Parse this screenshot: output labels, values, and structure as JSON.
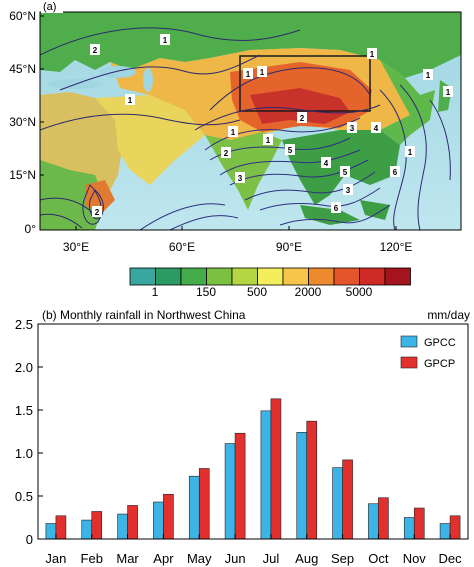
{
  "map_panel": {
    "label": "(a)",
    "lat_ticks": [
      "60°N",
      "45°N",
      "30°N",
      "15°N",
      "0°"
    ],
    "lon_ticks": [
      "30°E",
      "60°E",
      "90°E",
      "120°E"
    ],
    "contour_labels": [
      "2",
      "1",
      "1",
      "1",
      "1",
      "1",
      "1",
      "1",
      "1",
      "2",
      "3",
      "4",
      "5",
      "2",
      "4",
      "5",
      "3",
      "3",
      "6",
      "6",
      "2",
      "1",
      "1"
    ],
    "colorbar": {
      "colors": [
        "#3aa6a0",
        "#2c9b63",
        "#44ad4a",
        "#7ac142",
        "#b5d643",
        "#f3ef5c",
        "#f7c54a",
        "#ee8a2e",
        "#e4552b",
        "#cf2a27",
        "#a3141c"
      ],
      "labels": [
        "1",
        "150",
        "500",
        "2000",
        "5000"
      ]
    }
  },
  "chart_panel": {
    "title": "(b) Monthly rainfall in Northwest China",
    "unit": "mm/day"
  },
  "chart_data": {
    "type": "bar",
    "title": "(b) Monthly rainfall in Northwest China",
    "ylabel": "mm/day",
    "categories": [
      "Jan",
      "Feb",
      "Mar",
      "Apr",
      "May",
      "Jun",
      "Jul",
      "Aug",
      "Sep",
      "Oct",
      "Nov",
      "Dec"
    ],
    "yticks": [
      "0",
      "0.5",
      "1.0",
      "1.5",
      "2.0",
      "2.5"
    ],
    "ylim": [
      0,
      2.5
    ],
    "legend_position": "top-right",
    "series": [
      {
        "name": "GPCC",
        "color": "#3cb4e6",
        "values": [
          0.18,
          0.22,
          0.29,
          0.43,
          0.73,
          1.11,
          1.49,
          1.24,
          0.83,
          0.41,
          0.25,
          0.18
        ]
      },
      {
        "name": "GPCP",
        "color": "#e2302e",
        "values": [
          0.27,
          0.32,
          0.39,
          0.52,
          0.82,
          1.23,
          1.63,
          1.37,
          0.92,
          0.48,
          0.36,
          0.27
        ]
      }
    ]
  }
}
